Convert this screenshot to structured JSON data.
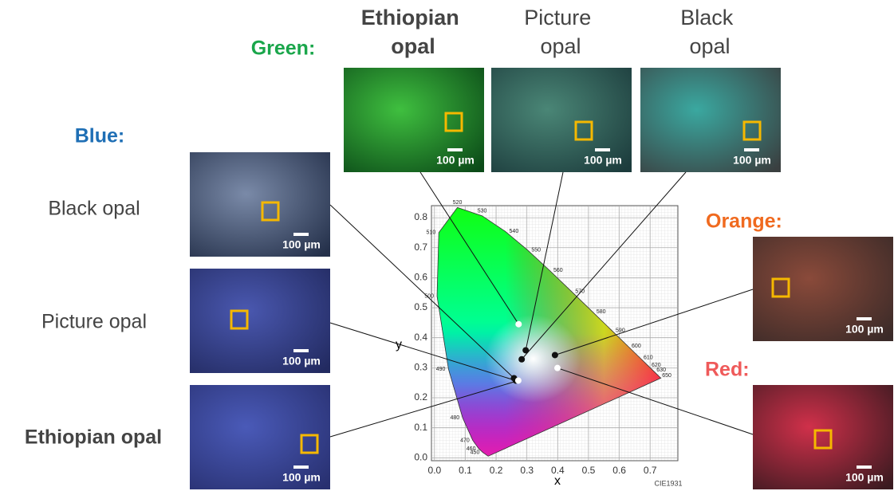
{
  "chart_data": {
    "type": "scatter",
    "xlabel": "x",
    "ylabel": "y",
    "annotation": "CIE1931",
    "xlim": [
      -0.01,
      0.79
    ],
    "ylim": [
      -0.01,
      0.84
    ],
    "xticks": [
      {
        "value": 0,
        "label": "0.0"
      },
      0.1,
      0.2,
      0.3,
      0.4,
      0.5,
      0.6,
      0.7
    ],
    "yticks": [
      {
        "value": 0,
        "label": "0.0"
      },
      0.1,
      0.2,
      0.3,
      0.4,
      0.5,
      0.6,
      0.7,
      0.8
    ],
    "wavelength_labels": [
      450,
      460,
      470,
      480,
      490,
      500,
      510,
      520,
      530,
      540,
      550,
      560,
      570,
      580,
      590,
      600,
      610,
      620,
      630,
      650
    ],
    "scale_bar_label": "100 µm",
    "groups": [
      {
        "label": "Green:",
        "color": "#1aa64b",
        "samples": [
          {
            "name": "Ethiopian opal",
            "x": 0.273,
            "y": 0.445,
            "color": "#ffffff"
          },
          {
            "name": "Picture opal",
            "x": 0.296,
            "y": 0.358,
            "color": "#111111"
          },
          {
            "name": "Black opal",
            "x": 0.283,
            "y": 0.328,
            "color": "#111111"
          }
        ]
      },
      {
        "label": "Blue:",
        "color": "#1f6fb5",
        "samples": [
          {
            "name": "Black opal",
            "x": 0.258,
            "y": 0.265,
            "color": "#111111"
          },
          {
            "name": "Picture opal",
            "x": 0.264,
            "y": 0.257,
            "color": "#111111"
          },
          {
            "name": "Ethiopian opal",
            "x": 0.272,
            "y": 0.257,
            "color": "#ffffff"
          }
        ]
      },
      {
        "label": "Orange:",
        "color": "#f06a1f",
        "samples": [
          {
            "x": 0.391,
            "y": 0.342,
            "color": "#111111"
          }
        ]
      },
      {
        "label": "Red:",
        "color": "#ef5a5a",
        "samples": [
          {
            "x": 0.399,
            "y": 0.299,
            "color": "#ffffff"
          }
        ]
      }
    ]
  }
}
